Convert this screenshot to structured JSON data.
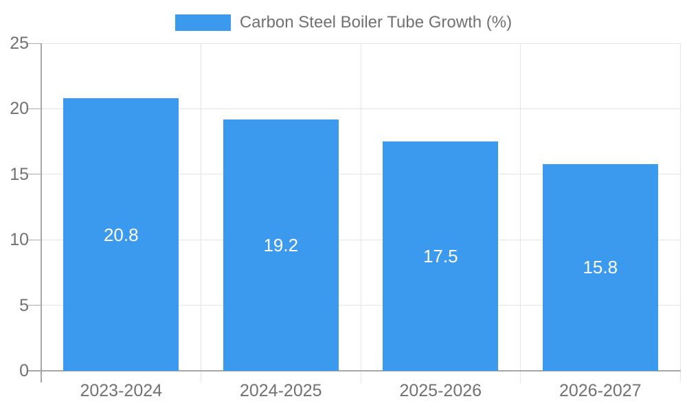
{
  "chart_data": {
    "type": "bar",
    "title": "Carbon Steel Boiler Tube Growth (%)",
    "categories": [
      "2023-2024",
      "2024-2025",
      "2025-2026",
      "2026-2027"
    ],
    "values": [
      20.8,
      19.2,
      17.5,
      15.8
    ],
    "data_labels": [
      "20.8",
      "19.2",
      "17.5",
      "15.8"
    ],
    "xlabel": "",
    "ylabel": "",
    "ylim": [
      0,
      25
    ],
    "yticks": [
      0,
      5,
      10,
      15,
      20,
      25
    ],
    "grid": true,
    "legend_position": "top-center",
    "colors": {
      "bar": "#3B99EE",
      "bar_label_text": "#ffffff",
      "axis_text": "#717171",
      "grid_line": "#e4e4e4",
      "tick_line": "#ababab",
      "axis_line": "#a6a6a6"
    }
  },
  "legend": {
    "items": [
      {
        "label": "Carbon Steel Boiler Tube Growth (%)",
        "swatch_color": "#3B99EE"
      }
    ]
  }
}
